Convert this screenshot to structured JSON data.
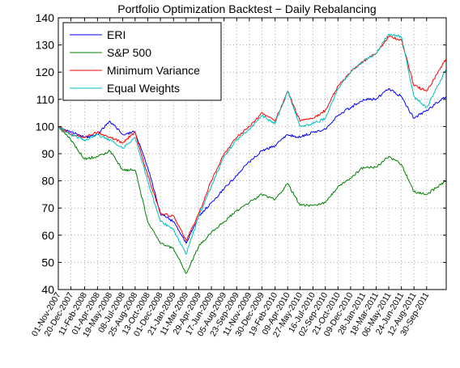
{
  "chart_data": {
    "type": "line",
    "title": "Portfolio Optimization Backtest − Daily Rebalancing",
    "xlabel": "",
    "ylabel": "",
    "ylim": [
      40,
      140
    ],
    "yticks": [
      40,
      50,
      60,
      70,
      80,
      90,
      100,
      110,
      120,
      130,
      140
    ],
    "xlim": [
      "01-Nov-2007",
      "15-Dec-2011"
    ],
    "xtick_labels": [
      "01-Nov-2007",
      "20-Dec-2007",
      "11-Feb-2008",
      "01-Apr-2008",
      "19-May-2008",
      "08-Jul-2008",
      "25-Aug-2008",
      "13-Oct-2008",
      "01-Dec-2008",
      "21-Jan-2009",
      "11-Mar-2009",
      "29-Apr-2009",
      "17-Jun-2009",
      "05-Aug-2009",
      "23-Sep-2009",
      "11-Nov-2009",
      "30-Dec-2009",
      "19-Feb-2010",
      "09-Apr-2010",
      "27-May-2010",
      "16-Jul-2010",
      "02-Sep-2010",
      "21-Oct-2010",
      "09-Dec-2010",
      "28-Jan-2011",
      "18-Mar-2011",
      "06-May-2011",
      "24-Jun-2011",
      "12-Aug-2011",
      "30-Sep-2011"
    ],
    "grid": true,
    "legend_position": "top-left",
    "series": [
      {
        "name": "ERI",
        "color": "#0000ff",
        "points": [
          [
            "01-Nov-2007",
            100
          ],
          [
            "20-Dec-2007",
            98
          ],
          [
            "11-Feb-2008",
            96
          ],
          [
            "01-Apr-2008",
            97
          ],
          [
            "19-May-2008",
            102
          ],
          [
            "08-Jul-2008",
            97
          ],
          [
            "25-Aug-2008",
            98
          ],
          [
            "13-Oct-2008",
            85
          ],
          [
            "01-Dec-2008",
            68
          ],
          [
            "21-Jan-2009",
            65
          ],
          [
            "11-Mar-2009",
            57
          ],
          [
            "29-Apr-2009",
            67
          ],
          [
            "17-Jun-2009",
            72
          ],
          [
            "05-Aug-2009",
            77
          ],
          [
            "23-Sep-2009",
            82
          ],
          [
            "11-Nov-2009",
            87
          ],
          [
            "30-Dec-2009",
            91
          ],
          [
            "19-Feb-2010",
            93
          ],
          [
            "09-Apr-2010",
            97
          ],
          [
            "27-May-2010",
            96
          ],
          [
            "16-Jul-2010",
            98
          ],
          [
            "02-Sep-2010",
            99
          ],
          [
            "21-Oct-2010",
            104
          ],
          [
            "09-Dec-2010",
            107
          ],
          [
            "28-Jan-2011",
            110
          ],
          [
            "18-Mar-2011",
            110
          ],
          [
            "06-May-2011",
            114
          ],
          [
            "24-Jun-2011",
            111
          ],
          [
            "12-Aug-2011",
            103
          ],
          [
            "30-Sep-2011",
            106
          ],
          [
            "15-Dec-2011",
            111
          ]
        ]
      },
      {
        "name": "S&P 500",
        "color": "#008000",
        "points": [
          [
            "01-Nov-2007",
            100
          ],
          [
            "20-Dec-2007",
            95
          ],
          [
            "11-Feb-2008",
            88
          ],
          [
            "01-Apr-2008",
            89
          ],
          [
            "19-May-2008",
            91
          ],
          [
            "08-Jul-2008",
            84
          ],
          [
            "25-Aug-2008",
            84
          ],
          [
            "13-Oct-2008",
            65
          ],
          [
            "01-Dec-2008",
            57
          ],
          [
            "21-Jan-2009",
            55
          ],
          [
            "11-Mar-2009",
            46
          ],
          [
            "29-Apr-2009",
            56
          ],
          [
            "17-Jun-2009",
            61
          ],
          [
            "05-Aug-2009",
            65
          ],
          [
            "23-Sep-2009",
            69
          ],
          [
            "11-Nov-2009",
            72
          ],
          [
            "30-Dec-2009",
            75
          ],
          [
            "19-Feb-2010",
            73
          ],
          [
            "09-Apr-2010",
            79
          ],
          [
            "27-May-2010",
            71
          ],
          [
            "16-Jul-2010",
            71
          ],
          [
            "02-Sep-2010",
            72
          ],
          [
            "21-Oct-2010",
            78
          ],
          [
            "09-Dec-2010",
            81
          ],
          [
            "28-Jan-2011",
            85
          ],
          [
            "18-Mar-2011",
            85
          ],
          [
            "06-May-2011",
            89
          ],
          [
            "24-Jun-2011",
            86
          ],
          [
            "12-Aug-2011",
            76
          ],
          [
            "30-Sep-2011",
            75
          ],
          [
            "15-Dec-2011",
            80
          ]
        ]
      },
      {
        "name": "Minimum Variance",
        "color": "#ff0000",
        "points": [
          [
            "01-Nov-2007",
            100
          ],
          [
            "20-Dec-2007",
            97
          ],
          [
            "11-Feb-2008",
            96
          ],
          [
            "01-Apr-2008",
            98
          ],
          [
            "19-May-2008",
            96
          ],
          [
            "08-Jul-2008",
            94
          ],
          [
            "25-Aug-2008",
            98
          ],
          [
            "13-Oct-2008",
            82
          ],
          [
            "01-Dec-2008",
            68
          ],
          [
            "21-Jan-2009",
            67
          ],
          [
            "11-Mar-2009",
            58
          ],
          [
            "29-Apr-2009",
            68
          ],
          [
            "17-Jun-2009",
            80
          ],
          [
            "05-Aug-2009",
            90
          ],
          [
            "23-Sep-2009",
            96
          ],
          [
            "11-Nov-2009",
            100
          ],
          [
            "30-Dec-2009",
            105
          ],
          [
            "19-Feb-2010",
            102
          ],
          [
            "09-Apr-2010",
            113
          ],
          [
            "27-May-2010",
            102
          ],
          [
            "16-Jul-2010",
            103
          ],
          [
            "02-Sep-2010",
            106
          ],
          [
            "21-Oct-2010",
            115
          ],
          [
            "09-Dec-2010",
            120
          ],
          [
            "28-Jan-2011",
            124
          ],
          [
            "18-Mar-2011",
            127
          ],
          [
            "06-May-2011",
            133
          ],
          [
            "24-Jun-2011",
            132
          ],
          [
            "12-Aug-2011",
            115
          ],
          [
            "30-Sep-2011",
            113
          ],
          [
            "15-Dec-2011",
            125
          ]
        ]
      },
      {
        "name": "Equal Weights",
        "color": "#00bfbf",
        "points": [
          [
            "01-Nov-2007",
            100
          ],
          [
            "20-Dec-2007",
            97
          ],
          [
            "11-Feb-2008",
            95
          ],
          [
            "01-Apr-2008",
            97
          ],
          [
            "19-May-2008",
            95
          ],
          [
            "08-Jul-2008",
            92
          ],
          [
            "25-Aug-2008",
            96
          ],
          [
            "13-Oct-2008",
            80
          ],
          [
            "01-Dec-2008",
            65
          ],
          [
            "21-Jan-2009",
            62
          ],
          [
            "11-Mar-2009",
            53
          ],
          [
            "29-Apr-2009",
            67
          ],
          [
            "17-Jun-2009",
            78
          ],
          [
            "05-Aug-2009",
            89
          ],
          [
            "23-Sep-2009",
            95
          ],
          [
            "11-Nov-2009",
            99
          ],
          [
            "30-Dec-2009",
            104
          ],
          [
            "19-Feb-2010",
            101
          ],
          [
            "09-Apr-2010",
            113
          ],
          [
            "27-May-2010",
            100
          ],
          [
            "16-Jul-2010",
            101
          ],
          [
            "02-Sep-2010",
            103
          ],
          [
            "21-Oct-2010",
            114
          ],
          [
            "09-Dec-2010",
            120
          ],
          [
            "28-Jan-2011",
            124
          ],
          [
            "18-Mar-2011",
            127
          ],
          [
            "06-May-2011",
            134
          ],
          [
            "24-Jun-2011",
            133
          ],
          [
            "12-Aug-2011",
            111
          ],
          [
            "30-Sep-2011",
            107
          ],
          [
            "15-Dec-2011",
            121
          ]
        ]
      }
    ]
  }
}
